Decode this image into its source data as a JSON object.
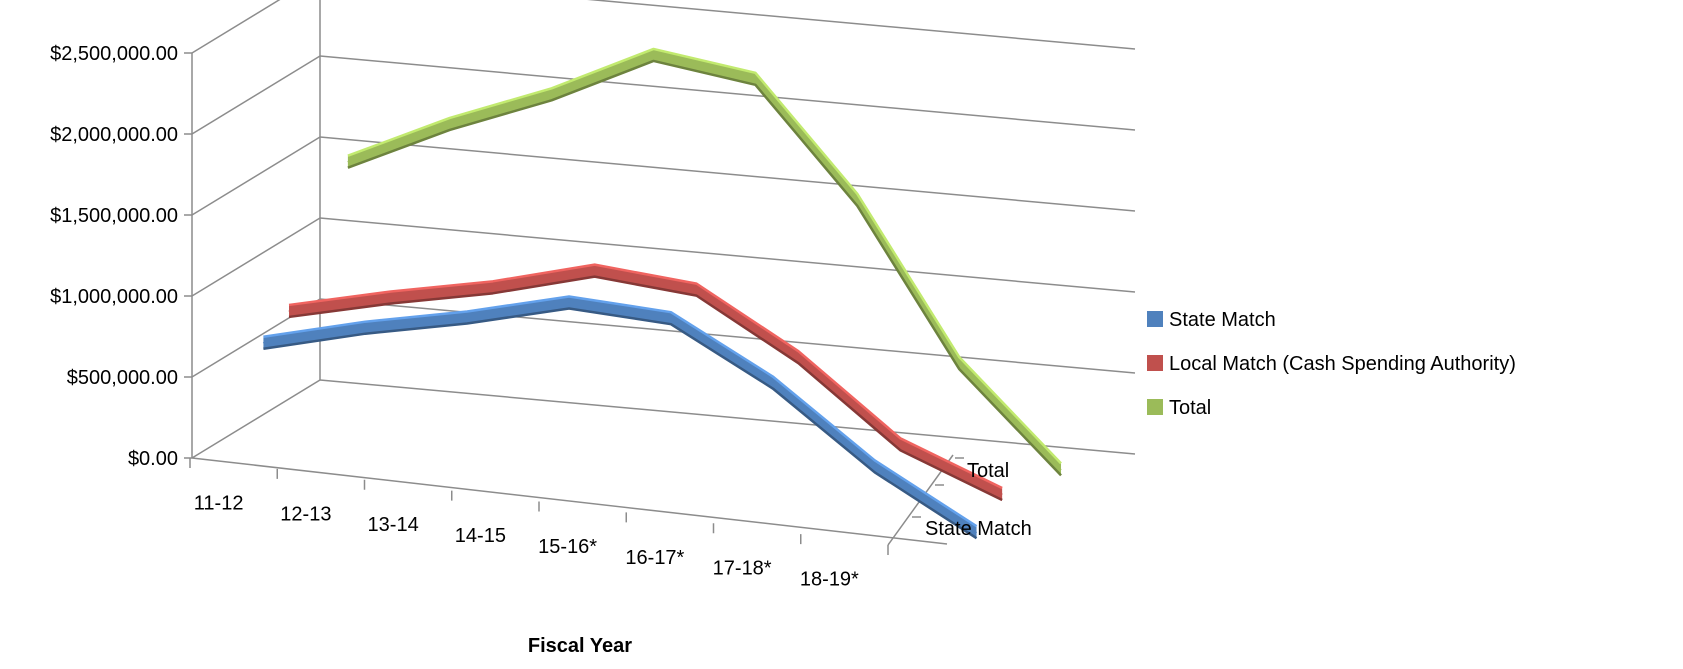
{
  "chart_data": {
    "type": "line",
    "title": "",
    "xlabel": "Fiscal Year",
    "ylabel": "",
    "categories": [
      "11-12",
      "12-13",
      "13-14",
      "14-15",
      "15-16*",
      "16-17*",
      "17-18*",
      "18-19*"
    ],
    "depth_labels": [
      "State Match",
      "Total"
    ],
    "yticks": [
      "$0.00",
      "$500,000.00",
      "$1,000,000.00",
      "$1,500,000.00",
      "$2,000,000.00",
      "$2,500,000.00"
    ],
    "ylim": [
      0,
      2500000
    ],
    "grid": true,
    "legend_position": "right",
    "series": [
      {
        "name": "State Match",
        "color": "#4F81BD",
        "values": [
          700000,
          850000,
          970000,
          1120000,
          1080000,
          740000,
          280000,
          -70000
        ]
      },
      {
        "name": "Local Match (Cash Spending Authority)",
        "color": "#C0504D",
        "values": [
          800000,
          940000,
          1060000,
          1220000,
          1160000,
          800000,
          320000,
          70000
        ]
      },
      {
        "name": "Total",
        "color": "#9BBB59",
        "values": [
          1500000,
          1790000,
          2030000,
          2330000,
          2240000,
          1550000,
          600000,
          0
        ]
      }
    ]
  }
}
